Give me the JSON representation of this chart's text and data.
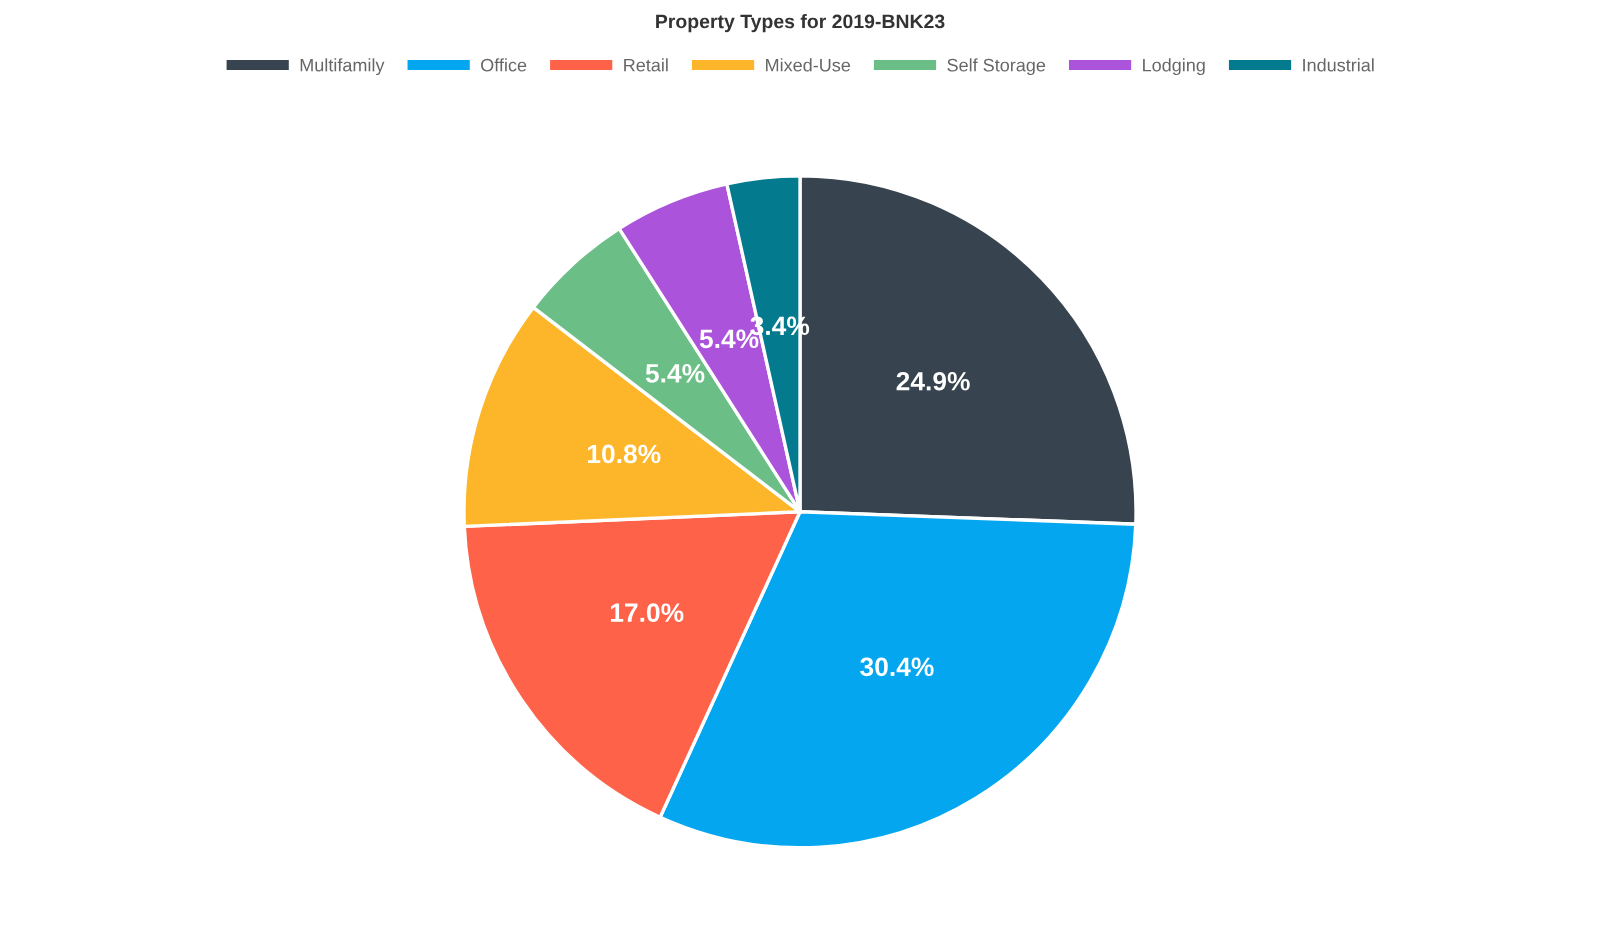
{
  "chart_data": {
    "type": "pie",
    "title": "Property Types for 2019-BNK23",
    "categories": [
      "Multifamily",
      "Office",
      "Retail",
      "Mixed-Use",
      "Self Storage",
      "Lodging",
      "Industrial"
    ],
    "values": [
      24.9,
      30.4,
      17.0,
      10.8,
      5.4,
      5.4,
      3.4
    ],
    "colors": [
      "#37444f",
      "#04a6f0",
      "#fe6249",
      "#fdb62a",
      "#6bbf86",
      "#ac53dc",
      "#047a8f"
    ],
    "value_labels": [
      "24.9%",
      "30.4%",
      "17.0%",
      "10.8%",
      "5.4%",
      "5.4%",
      "3.4%"
    ],
    "legend": "top"
  }
}
